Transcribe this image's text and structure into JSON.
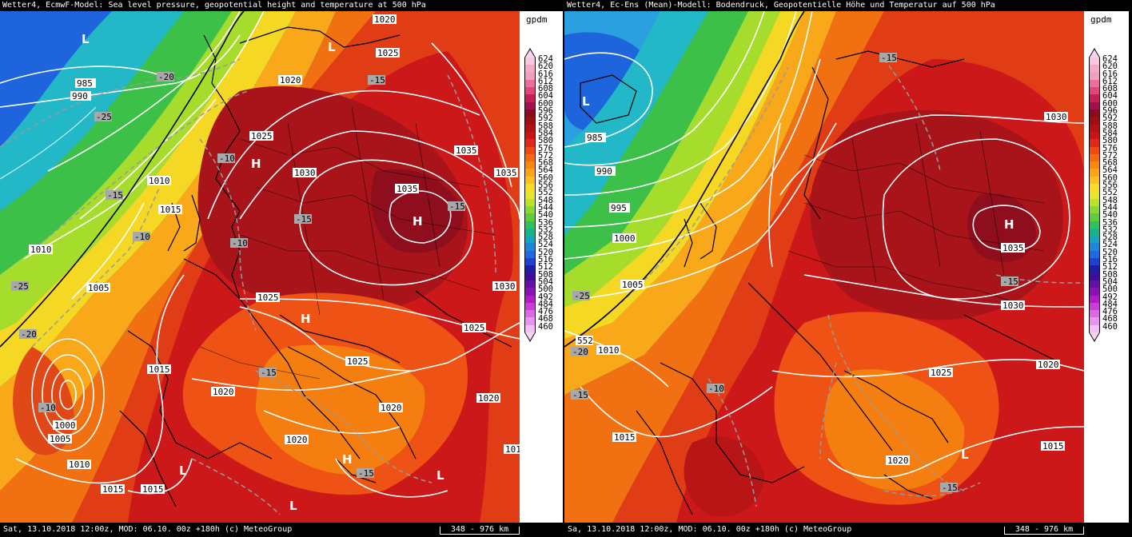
{
  "left_panel": {
    "title": "Wetter4, EcmwF-Model: Sea level pressure, geopotential height and temperature at 500 hPa",
    "footer": "Sat, 13.10.2018 12:00z, MOD: 06.10. 00z +180h (c) MeteoGroup",
    "scale": "348 - 976 km",
    "pressure_labels": [
      {
        "text": "985"
      },
      {
        "text": "990"
      },
      {
        "text": "1010"
      },
      {
        "text": "1015"
      },
      {
        "text": "1010"
      },
      {
        "text": "1005"
      },
      {
        "text": "1000"
      },
      {
        "text": "1005"
      },
      {
        "text": "1010"
      },
      {
        "text": "1015"
      },
      {
        "text": "1015"
      },
      {
        "text": "1015"
      },
      {
        "text": "1020"
      },
      {
        "text": "1020"
      },
      {
        "text": "1025"
      },
      {
        "text": "1020"
      },
      {
        "text": "1025"
      },
      {
        "text": "1030"
      },
      {
        "text": "1035"
      },
      {
        "text": "1035"
      },
      {
        "text": "1035"
      },
      {
        "text": "1030"
      },
      {
        "text": "1025"
      },
      {
        "text": "1025"
      },
      {
        "text": "1025"
      },
      {
        "text": "1020"
      },
      {
        "text": "1020"
      },
      {
        "text": "1020"
      },
      {
        "text": "101"
      }
    ],
    "temp_labels": [
      {
        "text": "-20"
      },
      {
        "text": "-25"
      },
      {
        "text": "-15"
      },
      {
        "text": "-10"
      },
      {
        "text": "-25"
      },
      {
        "text": "-20"
      },
      {
        "text": "-10"
      },
      {
        "text": "-10"
      },
      {
        "text": "-15"
      },
      {
        "text": "-15"
      },
      {
        "text": "-15"
      },
      {
        "text": "-15"
      },
      {
        "text": "-10"
      },
      {
        "text": "-15"
      }
    ],
    "centers": [
      {
        "text": "L"
      },
      {
        "text": "L"
      },
      {
        "text": "H"
      },
      {
        "text": "H"
      },
      {
        "text": "H"
      },
      {
        "text": "H"
      },
      {
        "text": "L"
      },
      {
        "text": "L"
      },
      {
        "text": "L"
      }
    ]
  },
  "right_panel": {
    "title": "Wetter4, Ec-Ens (Mean)-Modell: Bodendruck, Geopotentielle Höhe und Temperatur auf 500 hPa",
    "footer": "Sa, 13.10.2018 12:00z, MOD: 06.10. 00z +180h (c) MeteoGroup",
    "scale": "348 - 976 km",
    "pressure_labels": [
      {
        "text": "985"
      },
      {
        "text": "990"
      },
      {
        "text": "995"
      },
      {
        "text": "1000"
      },
      {
        "text": "1005"
      },
      {
        "text": "1010"
      },
      {
        "text": "1015"
      },
      {
        "text": "1020"
      },
      {
        "text": "1025"
      },
      {
        "text": "1030"
      },
      {
        "text": "1035"
      },
      {
        "text": "1030"
      },
      {
        "text": "1020"
      },
      {
        "text": "1015"
      }
    ],
    "temp_labels": [
      {
        "text": "-15"
      },
      {
        "text": "-25"
      },
      {
        "text": "-20"
      },
      {
        "text": "-10"
      },
      {
        "text": "-15"
      },
      {
        "text": "-15"
      },
      {
        "text": "-15"
      }
    ],
    "centers": [
      {
        "text": "L"
      },
      {
        "text": "H"
      },
      {
        "text": "L"
      }
    ],
    "geopotential_labels": [
      {
        "text": "552"
      }
    ]
  },
  "legend": {
    "unit": "gpdm",
    "levels": [
      "624",
      "620",
      "616",
      "612",
      "608",
      "604",
      "600",
      "596",
      "592",
      "588",
      "584",
      "580",
      "576",
      "572",
      "568",
      "564",
      "560",
      "556",
      "552",
      "548",
      "544",
      "540",
      "536",
      "532",
      "528",
      "524",
      "520",
      "516",
      "512",
      "508",
      "504",
      "500",
      "492",
      "484",
      "476",
      "468",
      "460"
    ],
    "colors": [
      "#f7c8de",
      "#f3a9c8",
      "#f0a0b8",
      "#ea6f9e",
      "#e0457f",
      "#c91d57",
      "#a5114a",
      "#8b0a22",
      "#9b1010",
      "#b31212",
      "#cc1414",
      "#e02818",
      "#ee4a12",
      "#f46a0c",
      "#f8880c",
      "#fba416",
      "#fbc020",
      "#f8dc28",
      "#e4e828",
      "#bce22c",
      "#8cd832",
      "#60cc3a",
      "#30c060",
      "#14b48c",
      "#14a4c0",
      "#1c88dc",
      "#1e68e0",
      "#1a44d0",
      "#1e1ca8",
      "#3e0c98",
      "#6410a8",
      "#8a10b8",
      "#b01cc8",
      "#cc3cd8",
      "#dc68e4",
      "#e896ec",
      "#f2c0f4"
    ]
  },
  "colors": {
    "deep_red": "#a5141a",
    "red": "#d41c14",
    "orange_red": "#ee4a12",
    "orange": "#f57b10",
    "yellow": "#f8dc28",
    "green": "#3cc048",
    "cyan": "#22b4c8",
    "blue": "#1c78e0",
    "navy": "#1e40c8"
  }
}
